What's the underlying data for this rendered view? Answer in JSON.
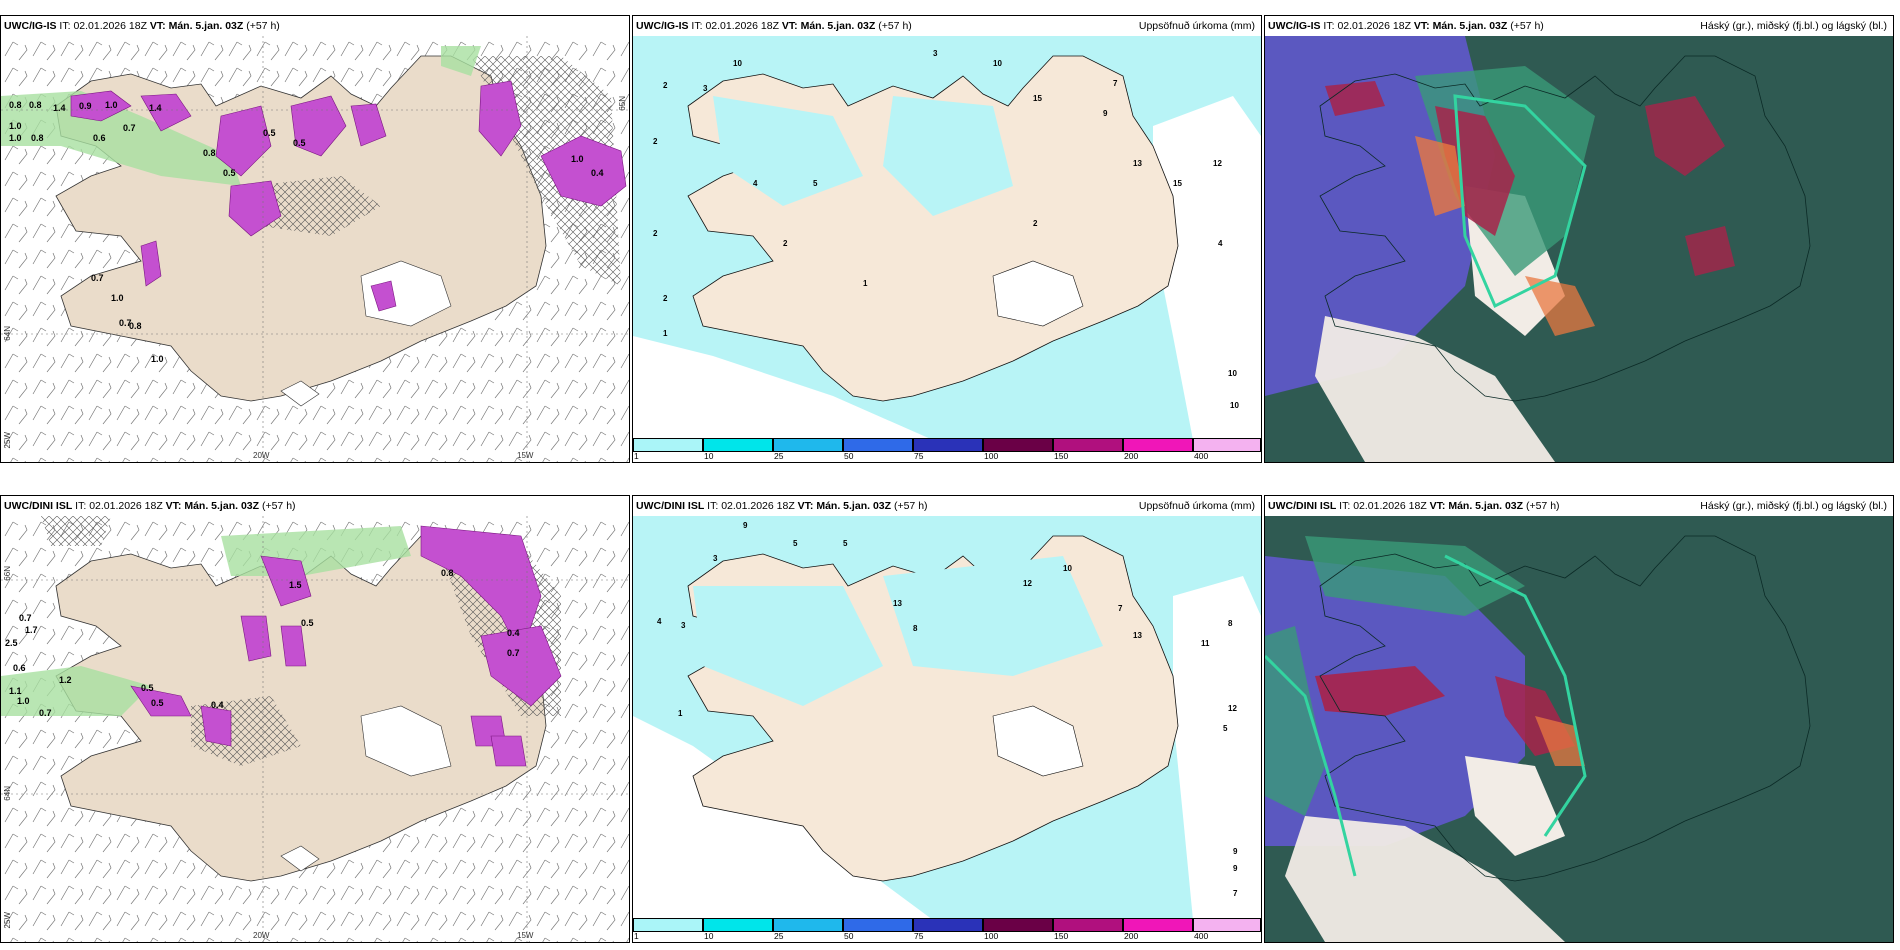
{
  "panels": {
    "p1": {
      "model": "UWC/IG-IS",
      "it_label": "IT:",
      "it_value": "02.01.2026 18Z",
      "vt_label": "VT:",
      "vt_value": "Mán. 5.jan. 03Z",
      "lead": "(+57 h)",
      "subtitle": ""
    },
    "p2": {
      "model": "UWC/IG-IS",
      "it_label": "IT:",
      "it_value": "02.01.2026 18Z",
      "vt_label": "VT:",
      "vt_value": "Mán. 5.jan. 03Z",
      "lead": "(+57 h)",
      "subtitle": "Uppsöfnuð úrkoma (mm)"
    },
    "p3": {
      "model": "UWC/IG-IS",
      "it_label": "IT:",
      "it_value": "02.01.2026 18Z",
      "vt_label": "VT:",
      "vt_value": "Mán. 5.jan. 03Z",
      "lead": "(+57 h)",
      "subtitle": "Háský (gr.), miðský (fj.bl.) og lágský (bl.)"
    },
    "p4": {
      "model": "UWC/DINI ISL",
      "it_label": "IT:",
      "it_value": "02.01.2026 18Z",
      "vt_label": "VT:",
      "vt_value": "Mán. 5.jan. 03Z",
      "lead": "(+57 h)",
      "subtitle": ""
    },
    "p5": {
      "model": "UWC/DINI ISL",
      "it_label": "IT:",
      "it_value": "02.01.2026 18Z",
      "vt_label": "VT:",
      "vt_value": "Mán. 5.jan. 03Z",
      "lead": "(+57 h)",
      "subtitle": "Uppsöfnuð úrkoma (mm)"
    },
    "p6": {
      "model": "UWC/DINI ISL",
      "it_label": "IT:",
      "it_value": "02.01.2026 18Z",
      "vt_label": "VT:",
      "vt_value": "Mán. 5.jan. 03Z",
      "lead": "(+57 h)",
      "subtitle": "Háský (gr.), miðský (fj.bl.) og lágský (bl.)"
    }
  },
  "axis_labels": {
    "lon_20w": "20W",
    "lon_15w": "15W",
    "lon_25w": "25W",
    "lat_64n": "64N",
    "lat_65n": "65N",
    "lat_66n": "66N"
  },
  "colorbar": {
    "labels": [
      "1",
      "10",
      "25",
      "50",
      "75",
      "100",
      "150",
      "200",
      "400"
    ],
    "colors": [
      "#aaf5f8",
      "#00e5ea",
      "#1fb8ec",
      "#2f6ae8",
      "#2a32b8",
      "#6a0046",
      "#b0107e",
      "#f016b8",
      "#f4b2f0"
    ]
  },
  "precip_labels_p1": [
    "0.8",
    "0.8",
    "1.4",
    "0.9",
    "1.0",
    "1.0",
    "1.0",
    "0.8",
    "0.7",
    "0.6",
    "0.5",
    "1.4",
    "0.7",
    "1.0",
    "0.7",
    "0.8",
    "1.0",
    "0.5",
    "0.8",
    "0.5",
    "1.0",
    "0.4"
  ],
  "precip_labels_p4": [
    "0.7",
    "1.7",
    "2.5",
    "0.6",
    "1.2",
    "1.1",
    "1.0",
    "0.7",
    "0.5",
    "0.4",
    "0.5",
    "1.5",
    "0.5",
    "0.4",
    "0.8",
    "0.7"
  ],
  "accum_labels_p2": [
    "2",
    "3",
    "10",
    "2",
    "2",
    "2",
    "10",
    "3",
    "4",
    "2",
    "1",
    "5",
    "15",
    "9",
    "7",
    "13",
    "12",
    "15",
    "4",
    "10",
    "10",
    "2",
    "1"
  ],
  "accum_labels_p5": [
    "9",
    "5",
    "3",
    "5",
    "4",
    "3",
    "13",
    "8",
    "12",
    "10",
    "7",
    "8",
    "11",
    "12",
    "5",
    "9",
    "9",
    "7",
    "13",
    "1"
  ]
}
